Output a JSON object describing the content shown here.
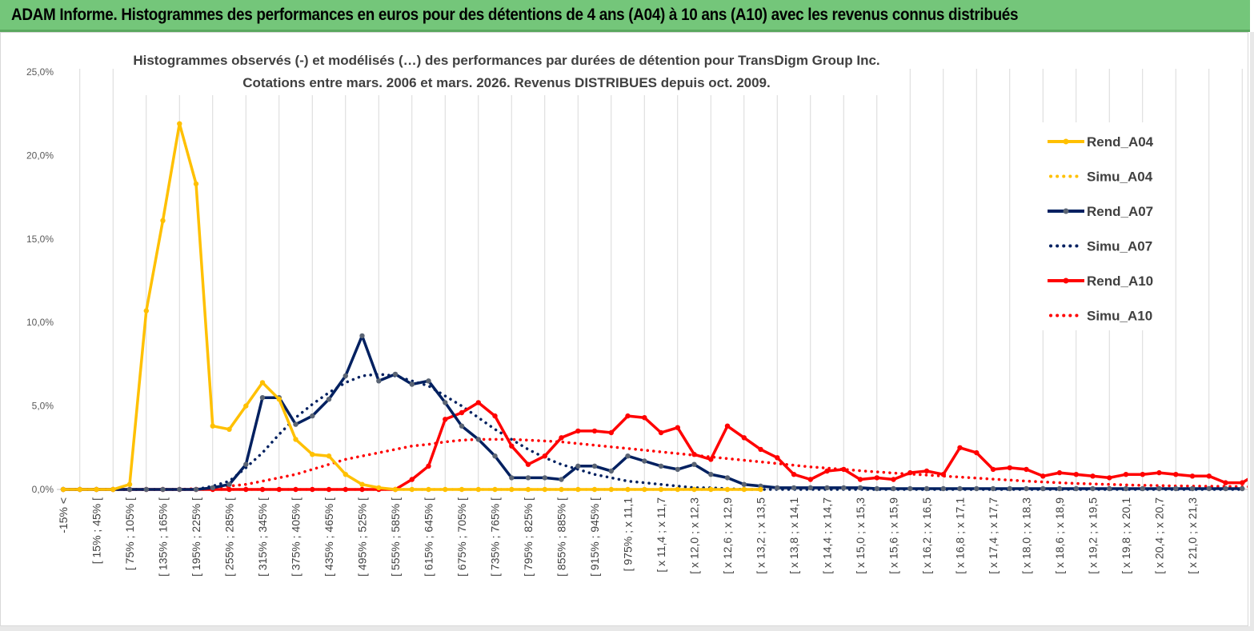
{
  "header": {
    "title": "ADAM Informe. Histogrammes des performances en euros pour des détentions de 4 ans (A04) à 10 ans (A10) avec les revenus connus distribués"
  },
  "chart_data": {
    "type": "line",
    "title": [
      "Histogrammes observés (-)  et modélisés (…) des performances par durées de détention pour TransDigm Group Inc.",
      "Cotations entre mars. 2006 et mars. 2026. Revenus DISTRIBUES depuis oct. 2009."
    ],
    "xlabel": "",
    "ylabel": "",
    "ylim": [
      0,
      25
    ],
    "y_ticks": [
      "0,0%",
      "5,0%",
      "10,0%",
      "15,0%",
      "20,0%",
      "25,0%"
    ],
    "grid": "vertical",
    "legend_position": "right",
    "x_tick_labels": [
      "-15% <",
      "[ 15% ; 45% [",
      "[ 75% ; 105% [",
      "[ 135% ; 165% [",
      "[ 195% ; 225% [",
      "[ 255% ; 285% [",
      "[ 315% ; 345% [",
      "[ 375% ; 405% [",
      "[ 435% ; 465% [",
      "[ 495% ; 525% [",
      "[ 555% ; 585% [",
      "[ 615% ; 645% [",
      "[ 675% ; 705% [",
      "[ 735% ; 765% [",
      "[ 795% ; 825% [",
      "[ 855% ; 885% [",
      "[ 915% ; 945% [",
      "[ 975% ; x 11,1",
      "[ x 11,4 ; x 11,7",
      "[ x 12,0 ; x 12,3",
      "[ x 12,6 ; x 12,9",
      "[ x 13,2 ; x 13,5",
      "[ x 13,8 ; x 14,1",
      "[ x 14,4 ; x 14,7",
      "[ x 15,0 ; x 15,3",
      "[ x 15,6 ; x 15,9",
      "[ x 16,2 ; x 16,5",
      "[ x 16,8 ; x 17,1",
      "[ x 17,4 ; x 17,7",
      "[ x 18,0 ; x 18,3",
      "[ x 18,6 ; x 18,9",
      "[ x 19,2 ; x 19,5",
      "[ x 19,8 ; x 20,1",
      "[ x 20,4 ; x 20,7",
      "[ x 21,0 ; x 21,3"
    ],
    "series": [
      {
        "name": "Rend_A04",
        "style": "solid",
        "color": "#ffc000",
        "marker_color": "#ffc000",
        "values": [
          0,
          0,
          0,
          0,
          0.3,
          10.7,
          16.1,
          21.9,
          18.3,
          3.8,
          3.6,
          5.0,
          6.4,
          5.4,
          3.0,
          2.1,
          2.0,
          0.9,
          0.3,
          0.1,
          0,
          0,
          0,
          0,
          0,
          0,
          0,
          0,
          0,
          0,
          0,
          0,
          0,
          0,
          0,
          0,
          0,
          0,
          0,
          0,
          0,
          0,
          0
        ]
      },
      {
        "name": "Simu_A04",
        "style": "dotted",
        "color": "#ffc000",
        "values": [
          0,
          0,
          0,
          0,
          0,
          0,
          0,
          0,
          0,
          0,
          0,
          0,
          0,
          0,
          0,
          0,
          0,
          0,
          0,
          0,
          0,
          0,
          0,
          0,
          0,
          0,
          0,
          0,
          0,
          0,
          0,
          0,
          0,
          0,
          0,
          0,
          0,
          0,
          0,
          0,
          0,
          0,
          0
        ]
      },
      {
        "name": "Rend_A07",
        "style": "solid",
        "color": "#002060",
        "marker_color": "#5a6474",
        "values": [
          0,
          0,
          0,
          0,
          0,
          0,
          0,
          0,
          0,
          0.1,
          0.3,
          1.5,
          5.5,
          5.5,
          3.9,
          4.4,
          5.4,
          6.8,
          9.2,
          6.5,
          6.9,
          6.3,
          6.5,
          5.2,
          3.8,
          3.0,
          2.0,
          0.7,
          0.7,
          0.7,
          0.6,
          1.4,
          1.4,
          1.1,
          2.0,
          1.7,
          1.4,
          1.2,
          1.5,
          0.9,
          0.7,
          0.3,
          0.2,
          0.1,
          0.1,
          0.1,
          0.1,
          0.1,
          0.1,
          0.05,
          0.05,
          0.05,
          0.05,
          0.05,
          0.05,
          0.05,
          0.05,
          0.05,
          0.05,
          0.05,
          0.05,
          0.05,
          0.05,
          0.05,
          0.05,
          0.05,
          0.05,
          0.05,
          0.05,
          0.05,
          0.05,
          0.05
        ]
      },
      {
        "name": "Simu_A07",
        "style": "dotted",
        "color": "#002060",
        "values": [
          0,
          0,
          0,
          0,
          0,
          0,
          0,
          0,
          0,
          0.2,
          0.5,
          1.3,
          2.2,
          3.3,
          4.3,
          5.1,
          5.8,
          6.4,
          6.8,
          6.9,
          6.8,
          6.5,
          6.2,
          5.6,
          5.0,
          4.3,
          3.6,
          3.0,
          2.4,
          1.9,
          1.5,
          1.2,
          0.9,
          0.7,
          0.5,
          0.4,
          0.3,
          0.2,
          0.1,
          0.1,
          0.05,
          0,
          0,
          0,
          0,
          0,
          0,
          0,
          0,
          0,
          0,
          0,
          0,
          0,
          0,
          0,
          0,
          0,
          0,
          0,
          0,
          0,
          0,
          0,
          0,
          0,
          0,
          0,
          0,
          0,
          0,
          0
        ]
      },
      {
        "name": "Rend_A10",
        "style": "solid",
        "color": "#ff0000",
        "marker_color": "#ff0000",
        "values": [
          0,
          0,
          0,
          0,
          0,
          0,
          0,
          0,
          0,
          0,
          0,
          0,
          0,
          0,
          0,
          0,
          0,
          0,
          0,
          0,
          0,
          0.6,
          1.4,
          4.2,
          4.6,
          5.2,
          4.4,
          2.6,
          1.5,
          2.0,
          3.1,
          3.5,
          3.5,
          3.4,
          4.4,
          4.3,
          3.4,
          3.7,
          2.1,
          1.8,
          3.8,
          3.1,
          2.4,
          1.9,
          0.9,
          0.6,
          1.1,
          1.2,
          0.6,
          0.7,
          0.6,
          1.0,
          1.1,
          0.9,
          2.5,
          2.2,
          1.2,
          1.3,
          1.2,
          0.8,
          1.0,
          0.9,
          0.8,
          0.7,
          0.9,
          0.9,
          1.0,
          0.9,
          0.8,
          0.8,
          0.4,
          0.4,
          1.0
        ]
      },
      {
        "name": "Simu_A10",
        "style": "dotted",
        "color": "#ff0000",
        "values": [
          0,
          0,
          0,
          0,
          0,
          0,
          0,
          0,
          0.05,
          0.1,
          0.2,
          0.3,
          0.5,
          0.7,
          0.9,
          1.2,
          1.5,
          1.8,
          2.0,
          2.2,
          2.4,
          2.6,
          2.7,
          2.85,
          2.95,
          3.0,
          3.0,
          3.0,
          2.95,
          2.9,
          2.85,
          2.75,
          2.65,
          2.55,
          2.45,
          2.35,
          2.25,
          2.15,
          2.05,
          1.95,
          1.85,
          1.75,
          1.65,
          1.55,
          1.45,
          1.35,
          1.28,
          1.2,
          1.12,
          1.05,
          0.98,
          0.92,
          0.86,
          0.8,
          0.74,
          0.68,
          0.62,
          0.56,
          0.5,
          0.45,
          0.4,
          0.36,
          0.33,
          0.3,
          0.27,
          0.25,
          0.23,
          0.21,
          0.2,
          0.19,
          0.18,
          0.17,
          0.16
        ]
      }
    ]
  }
}
